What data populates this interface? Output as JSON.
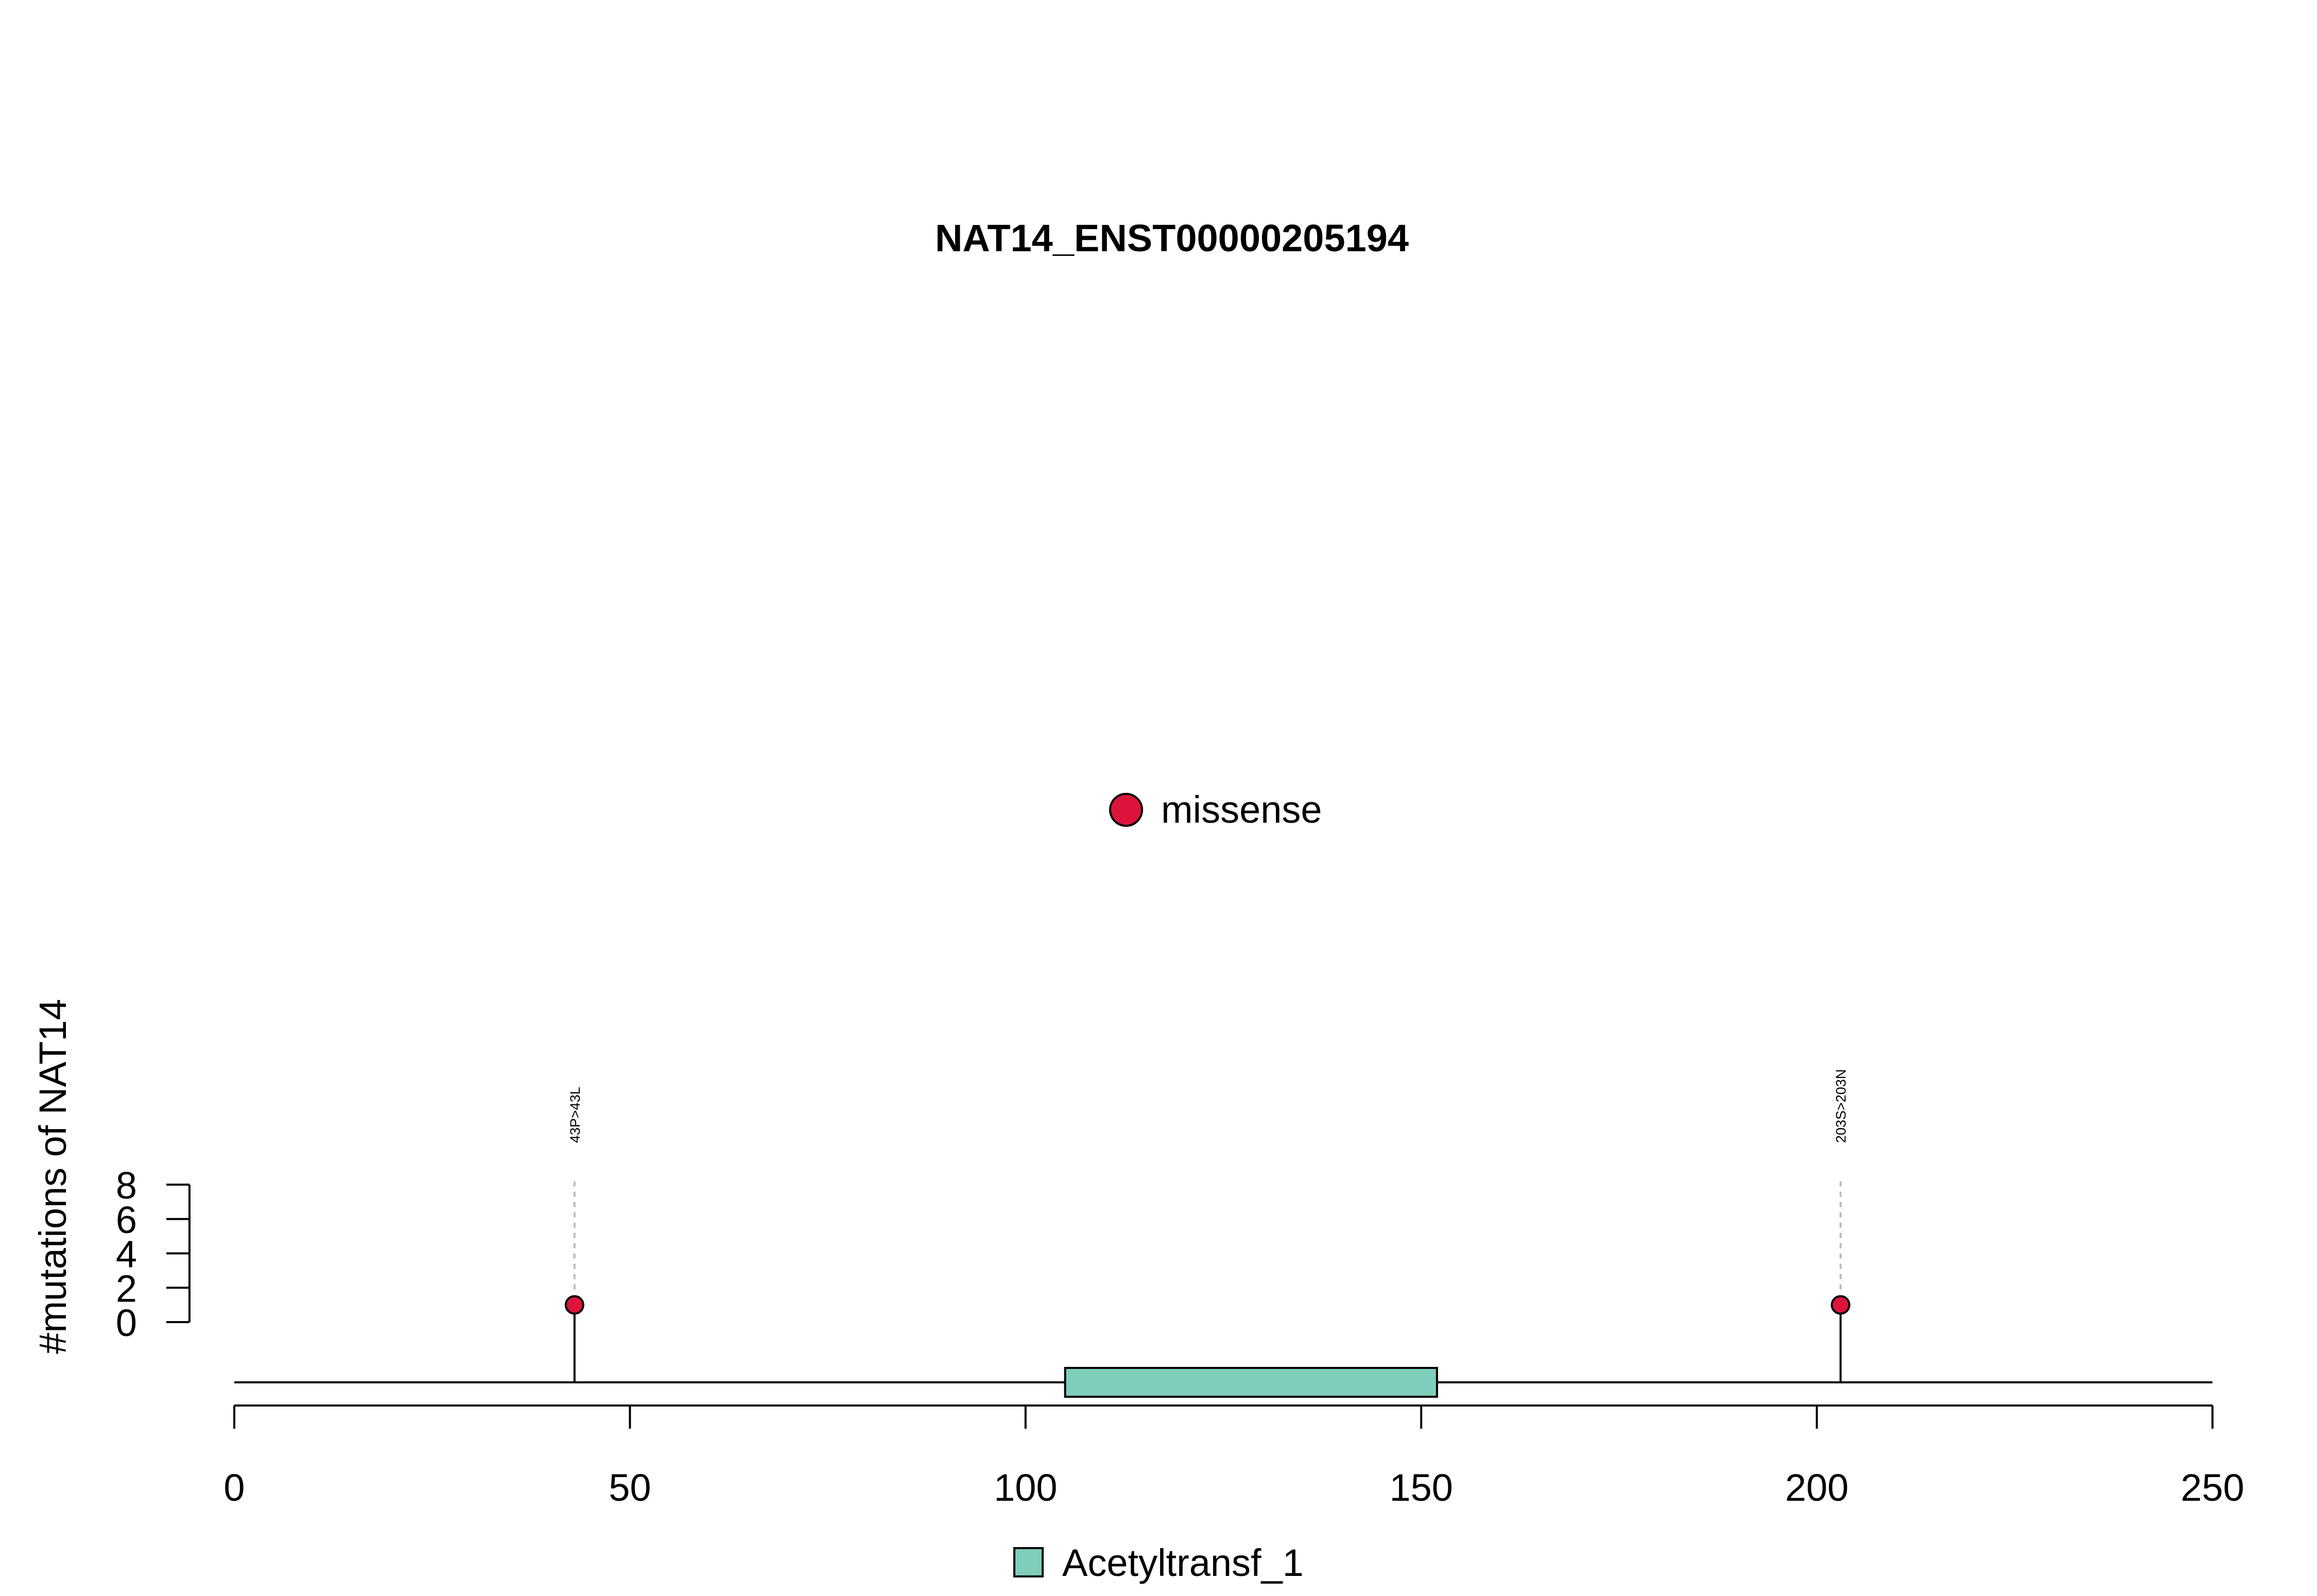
{
  "chart_data": {
    "type": "lollipop",
    "title": "NAT14_ENST00000205194",
    "ylabel": "#mutations of NAT14",
    "x_ticks": [
      "0",
      "50",
      "100",
      "150",
      "200",
      "250"
    ],
    "y_ticks": [
      "0",
      "2",
      "4",
      "6",
      "8"
    ],
    "xlim": [
      0,
      250
    ],
    "ylim": [
      0,
      8
    ],
    "protein_length": 250,
    "mutations": [
      {
        "position": 43,
        "count": 1,
        "label": "43P>43L",
        "type": "missense"
      },
      {
        "position": 203,
        "count": 1,
        "label": "203S>203N",
        "type": "missense"
      }
    ],
    "domains": [
      {
        "name": "Acetyltransf_1",
        "start": 105,
        "end": 152
      }
    ],
    "legend_mutation_types": [
      {
        "name": "missense",
        "color": "#dc143c"
      }
    ],
    "legend_domains": [
      {
        "name": "Acetyltransf_1",
        "color": "#7fcdbb"
      }
    ],
    "colors": {
      "missense": "#dc143c",
      "domain": "#7fcdbb",
      "connector": "#bbbbbb"
    }
  }
}
